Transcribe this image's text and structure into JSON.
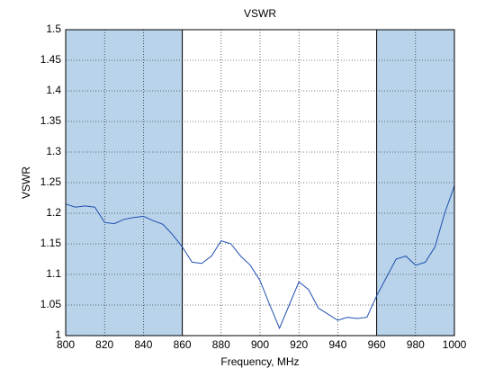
{
  "chart_data": {
    "type": "line",
    "title": "VSWR",
    "x_label": "Frequency, MHz",
    "y_label": "VSWR",
    "x": [
      800,
      805,
      810,
      815,
      820,
      825,
      830,
      835,
      840,
      845,
      850,
      855,
      860,
      865,
      870,
      875,
      880,
      885,
      890,
      895,
      900,
      905,
      910,
      915,
      920,
      925,
      930,
      935,
      940,
      945,
      950,
      955,
      960,
      965,
      970,
      975,
      980,
      985,
      990,
      995,
      1000
    ],
    "values": [
      1.215,
      1.21,
      1.212,
      1.21,
      1.185,
      1.183,
      1.19,
      1.193,
      1.195,
      1.188,
      1.182,
      1.165,
      1.145,
      1.12,
      1.118,
      1.13,
      1.155,
      1.15,
      1.13,
      1.115,
      1.09,
      1.05,
      1.012,
      1.05,
      1.088,
      1.075,
      1.045,
      1.035,
      1.025,
      1.03,
      1.028,
      1.03,
      1.065,
      1.095,
      1.125,
      1.13,
      1.115,
      1.12,
      1.145,
      1.2,
      1.245
    ],
    "color": "#1f4fb0",
    "shaded_regions": [
      [
        800,
        860
      ],
      [
        960,
        1000
      ]
    ],
    "shade_color": "#b9d3ea",
    "xlim": [
      800,
      1000
    ],
    "ylim": [
      1,
      1.5
    ],
    "xticks": [
      800,
      820,
      840,
      860,
      880,
      900,
      920,
      940,
      960,
      980,
      1000
    ],
    "yticks": [
      1,
      1.05,
      1.1,
      1.15,
      1.2,
      1.25,
      1.3,
      1.35,
      1.4,
      1.45,
      1.5
    ],
    "grid": true
  }
}
